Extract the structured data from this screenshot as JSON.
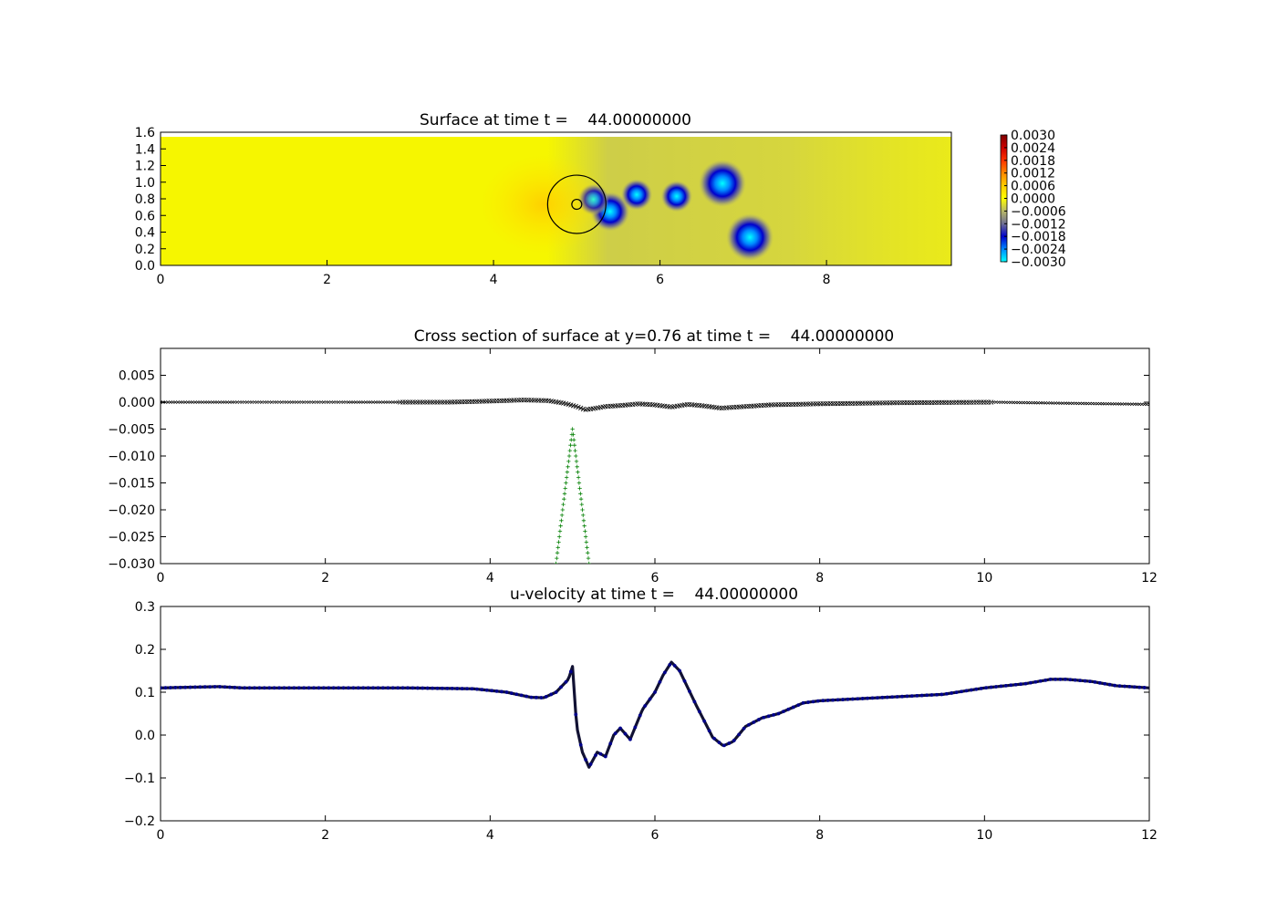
{
  "chart_data": [
    {
      "type": "heatmap",
      "title": "Surface at time t =    44.00000000",
      "xlim": [
        0,
        9.5
      ],
      "ylim": [
        0,
        1.6
      ],
      "xticks": [
        "0",
        "2",
        "4",
        "6",
        "8"
      ],
      "yticks": [
        "0.0",
        "0.2",
        "0.4",
        "0.6",
        "0.8",
        "1.0",
        "1.2",
        "1.4",
        "1.6"
      ],
      "colorbar": {
        "min": -0.003,
        "max": 0.003,
        "labels": [
          "0.0030",
          "0.0024",
          "0.0018",
          "0.0012",
          "0.0006",
          "0.0000",
          "−0.0006",
          "−0.0012",
          "−0.0018",
          "−0.0024",
          "−0.0030"
        ],
        "colors": [
          "#7f0000",
          "#cc0000",
          "#ff3300",
          "#ff8800",
          "#ffcc00",
          "#ffff00",
          "#b8b866",
          "#6f6f93",
          "#0000cc",
          "#0088ff",
          "#00ffff"
        ]
      },
      "background_color": "#f6f600",
      "features": [
        {
          "kind": "trough",
          "x": 6.75,
          "y": 1.02,
          "value": -0.003
        },
        {
          "kind": "trough",
          "x": 7.08,
          "y": 0.35,
          "value": -0.003
        },
        {
          "kind": "trough",
          "x": 5.4,
          "y": 0.67,
          "value": -0.0024
        },
        {
          "kind": "trough",
          "x": 5.72,
          "y": 0.88,
          "value": -0.0018
        },
        {
          "kind": "trough",
          "x": 6.2,
          "y": 0.86,
          "value": -0.0018
        },
        {
          "kind": "trough",
          "x": 5.2,
          "y": 0.82,
          "value": -0.0018
        },
        {
          "kind": "crest",
          "x": 4.6,
          "y": 0.76,
          "value": 0.0006
        },
        {
          "kind": "ring",
          "x": 5.0,
          "y": 0.76,
          "r": 0.35
        },
        {
          "kind": "ring",
          "x": 5.0,
          "y": 0.76,
          "r": 0.06
        }
      ]
    },
    {
      "type": "line",
      "title": "Cross section of surface at y=0.76 at time t =    44.00000000",
      "xlim": [
        0,
        12
      ],
      "ylim": [
        -0.03,
        0.01
      ],
      "xticks": [
        "0",
        "2",
        "4",
        "6",
        "8",
        "10",
        "12"
      ],
      "yticks": [
        "0.005",
        "0.000",
        "−0.005",
        "−0.010",
        "−0.015",
        "−0.020",
        "−0.025",
        "−0.030"
      ],
      "series": [
        {
          "marker": "x",
          "color": "#000000",
          "x": [
            0,
            2,
            2.9,
            3.5,
            4.0,
            4.4,
            4.7,
            4.9,
            5.05,
            5.15,
            5.25,
            5.4,
            5.6,
            5.8,
            6.0,
            6.2,
            6.4,
            6.6,
            6.8,
            7.0,
            7.4,
            8.0,
            9.0,
            10.1,
            11.0,
            12.0
          ],
          "y": [
            0.0,
            0.0,
            0.0,
            0.0,
            0.0002,
            0.0004,
            0.0003,
            -0.0002,
            -0.0008,
            -0.0014,
            -0.0012,
            -0.0008,
            -0.0006,
            -0.0003,
            -0.0005,
            -0.0009,
            -0.0004,
            -0.0007,
            -0.0011,
            -0.0009,
            -0.0005,
            -0.0003,
            -0.0001,
            0.0,
            -0.0002,
            -0.0004
          ]
        },
        {
          "marker": "+",
          "color": "#007f00",
          "x": [
            4.8,
            4.9,
            5.0,
            5.1,
            5.2
          ],
          "y": [
            -0.03,
            -0.0175,
            -0.005,
            -0.0175,
            -0.03
          ]
        }
      ]
    },
    {
      "type": "scatter",
      "title": "u-velocity at time t =    44.00000000",
      "xlim": [
        0,
        12
      ],
      "ylim": [
        -0.2,
        0.3
      ],
      "xticks": [
        "0",
        "2",
        "4",
        "6",
        "8",
        "10",
        "12"
      ],
      "yticks": [
        "0.3",
        "0.2",
        "0.1",
        "0.0",
        "−0.1",
        "−0.2"
      ],
      "series": [
        {
          "marker": "o",
          "color": "#00008b",
          "x": [
            0,
            0.7,
            1.0,
            2.0,
            3.0,
            3.8,
            4.2,
            4.5,
            4.65,
            4.8,
            4.95,
            5.0,
            5.05,
            5.12,
            5.2,
            5.3,
            5.4,
            5.5,
            5.58,
            5.7,
            5.85,
            6.0,
            6.1,
            6.2,
            6.3,
            6.5,
            6.7,
            6.83,
            6.95,
            7.1,
            7.3,
            7.5,
            7.8,
            8.0,
            8.5,
            9.0,
            9.5,
            10.0,
            10.5,
            10.8,
            11.0,
            11.3,
            11.6,
            12.0
          ],
          "y": [
            0.11,
            0.113,
            0.11,
            0.11,
            0.11,
            0.108,
            0.1,
            0.088,
            0.087,
            0.1,
            0.13,
            0.16,
            0.02,
            -0.04,
            -0.075,
            -0.04,
            -0.05,
            0.0,
            0.016,
            -0.01,
            0.06,
            0.1,
            0.14,
            0.17,
            0.15,
            0.07,
            -0.005,
            -0.025,
            -0.015,
            0.02,
            0.04,
            0.05,
            0.075,
            0.08,
            0.085,
            0.09,
            0.095,
            0.11,
            0.12,
            0.13,
            0.13,
            0.125,
            0.115,
            0.11
          ]
        }
      ]
    }
  ]
}
